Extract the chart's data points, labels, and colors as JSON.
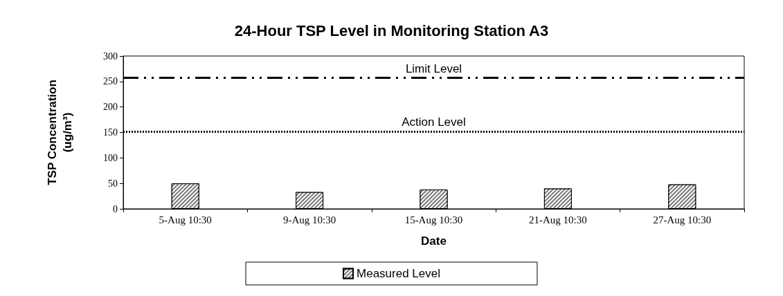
{
  "chart_data": {
    "type": "bar",
    "title": "24-Hour TSP Level in Monitoring Station A3",
    "xlabel": "Date",
    "ylabel": "TSP Concentration\n(ug/m³)",
    "categories": [
      "5-Aug 10:30",
      "9-Aug 10:30",
      "15-Aug 10:30",
      "21-Aug 10:30",
      "27-Aug 10:30"
    ],
    "series": [
      {
        "name": "Measured Level",
        "color": "#777777",
        "values": [
          50,
          33,
          38,
          40,
          48
        ]
      }
    ],
    "ylim": [
      0,
      300
    ],
    "yticks": [
      0,
      50,
      100,
      150,
      200,
      250,
      300
    ],
    "grid": false,
    "legend": "bottom",
    "ref_lines": [
      {
        "axis": "y",
        "value": 257,
        "label": "Limit Level",
        "line_style": "dashed",
        "color": "#000000"
      },
      {
        "axis": "y",
        "value": 152,
        "label": "Action Level",
        "line_style": "dotted",
        "color": "#000000"
      }
    ]
  }
}
